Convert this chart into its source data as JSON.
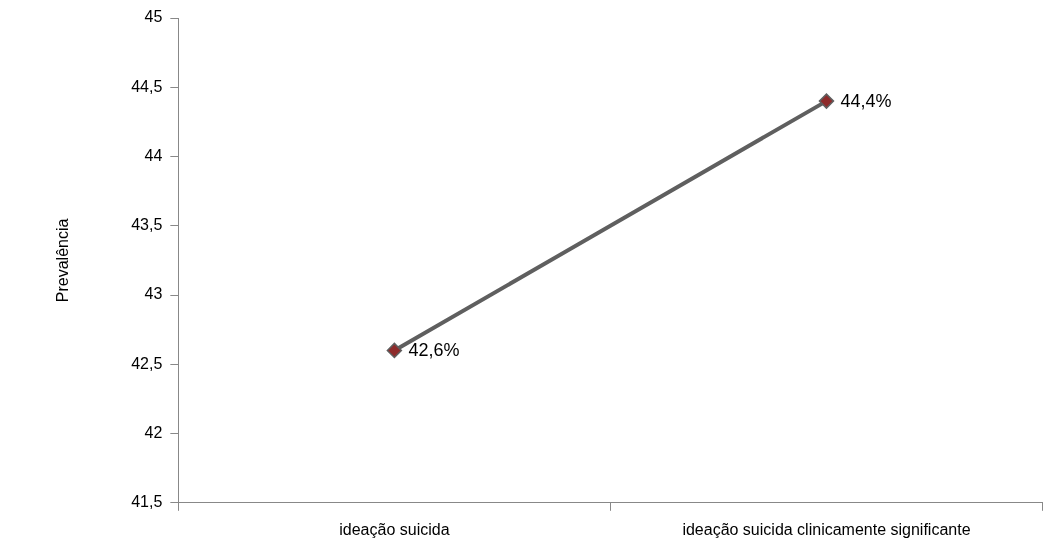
{
  "chart_data": {
    "type": "line",
    "ylabel": "Prevalência",
    "categories": [
      "ideação suicida",
      "ideação suicida clinicamente significante"
    ],
    "series": [
      {
        "color": "#5f5f5f",
        "colors": [
          "#8e2b2b",
          "#8e2b2b"
        ],
        "values": [
          42.6,
          44.4
        ],
        "value_labels": [
          "42,6%",
          "44,4%"
        ]
      }
    ],
    "ylim": [
      41.5,
      45
    ],
    "yticks": [
      {
        "value": 41.5,
        "label": "41,5"
      },
      42,
      {
        "value": 42.5,
        "label": "42,5"
      },
      43,
      {
        "value": 43.5,
        "label": "43,5"
      },
      44,
      {
        "value": 44.5,
        "label": "44,5"
      },
      45
    ],
    "grid": false,
    "marker": "diamond",
    "line_style": "solid"
  }
}
